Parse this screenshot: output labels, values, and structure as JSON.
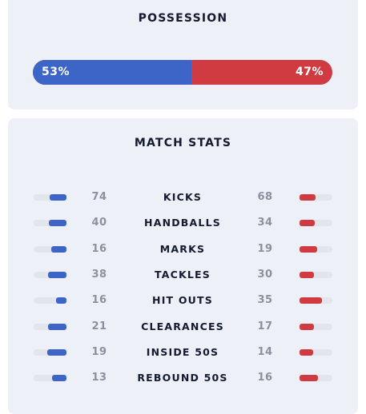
{
  "possession": {
    "title": "POSSESSION",
    "home_percent": 53,
    "away_percent": 47,
    "home_label": "53%",
    "away_label": "47%",
    "home_color": "#3d65c8",
    "away_color": "#cf3b40"
  },
  "match_stats": {
    "title": "MATCH STATS",
    "rows": [
      {
        "name": "KICKS",
        "home": 74,
        "away": 68
      },
      {
        "name": "HANDBALLS",
        "home": 40,
        "away": 34
      },
      {
        "name": "MARKS",
        "home": 16,
        "away": 19
      },
      {
        "name": "TACKLES",
        "home": 38,
        "away": 30
      },
      {
        "name": "HIT OUTS",
        "home": 16,
        "away": 35
      },
      {
        "name": "CLEARANCES",
        "home": 21,
        "away": 17
      },
      {
        "name": "INSIDE 50S",
        "home": 19,
        "away": 14
      },
      {
        "name": "REBOUND 50S",
        "home": 13,
        "away": 16
      }
    ]
  }
}
